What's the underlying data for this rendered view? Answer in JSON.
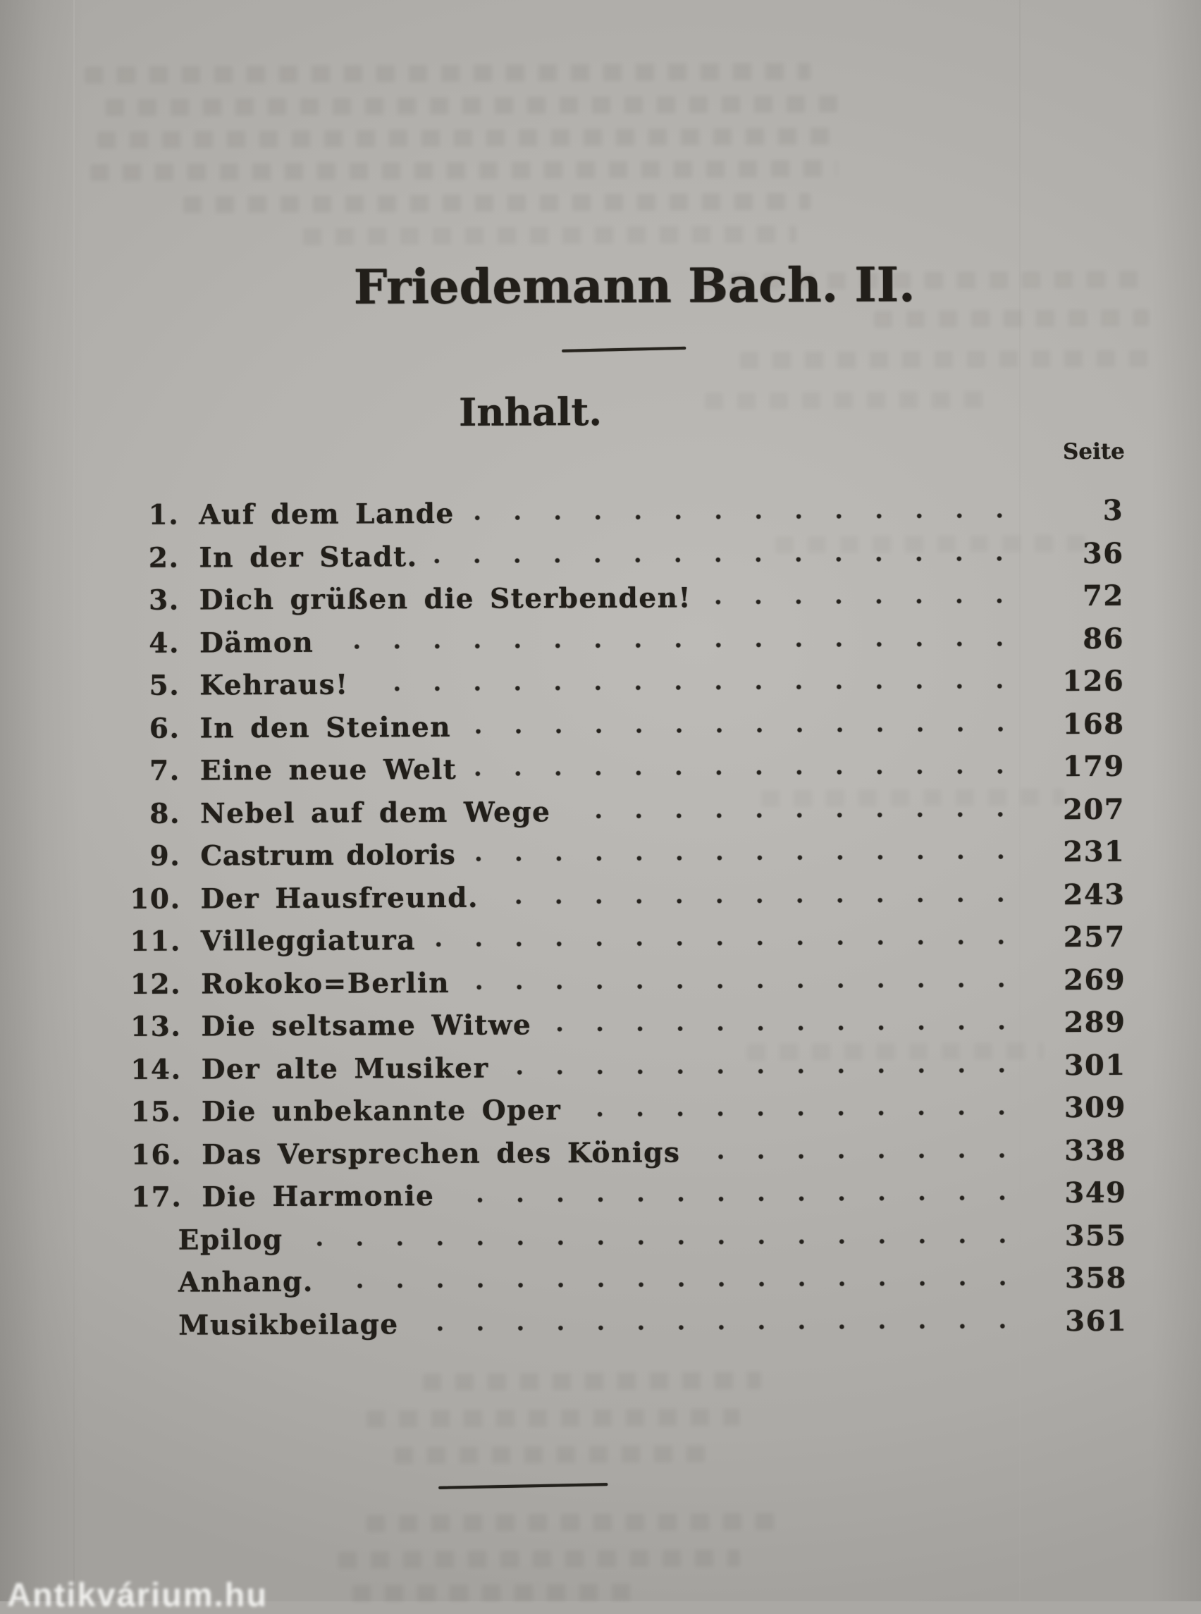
{
  "document": {
    "book_title": "Friedemann Bach. II.",
    "heading": "Inhalt.",
    "page_column_label": "Seite",
    "watermark": "Antikvárium.hu"
  },
  "toc": {
    "entries": [
      {
        "num": "1.",
        "title": "Auf dem Lande",
        "page": "3"
      },
      {
        "num": "2.",
        "title": "In der Stadt.",
        "page": "36"
      },
      {
        "num": "3.",
        "title": "Dich grüßen die Sterbenden!",
        "page": "72"
      },
      {
        "num": "4.",
        "title": "Dämon",
        "page": "86"
      },
      {
        "num": "5.",
        "title": "Kehraus!",
        "page": "126"
      },
      {
        "num": "6.",
        "title": "In den Steinen",
        "page": "168"
      },
      {
        "num": "7.",
        "title": "Eine neue Welt",
        "page": "179"
      },
      {
        "num": "8.",
        "title": "Nebel auf dem Wege",
        "page": "207"
      },
      {
        "num": "9.",
        "title": "Castrum doloris",
        "page": "231",
        "antiqua": true
      },
      {
        "num": "10.",
        "title": "Der Hausfreund.",
        "page": "243"
      },
      {
        "num": "11.",
        "title": "Villeggiatura",
        "page": "257"
      },
      {
        "num": "12.",
        "title": "Rokoko=Berlin",
        "page": "269"
      },
      {
        "num": "13.",
        "title": "Die seltsame Witwe",
        "page": "289"
      },
      {
        "num": "14.",
        "title": "Der alte Musiker",
        "page": "301"
      },
      {
        "num": "15.",
        "title": "Die unbekannte Oper",
        "page": "309"
      },
      {
        "num": "16.",
        "title": "Das Versprechen des Königs",
        "page": "338"
      },
      {
        "num": "17.",
        "title": "Die Harmonie",
        "page": "349"
      },
      {
        "num": "",
        "title": "Epilog",
        "page": "355",
        "sub": true
      },
      {
        "num": "",
        "title": "Anhang.",
        "page": "358",
        "sub": true
      },
      {
        "num": "",
        "title": "Musikbeilage",
        "page": "361",
        "sub": true
      }
    ]
  }
}
